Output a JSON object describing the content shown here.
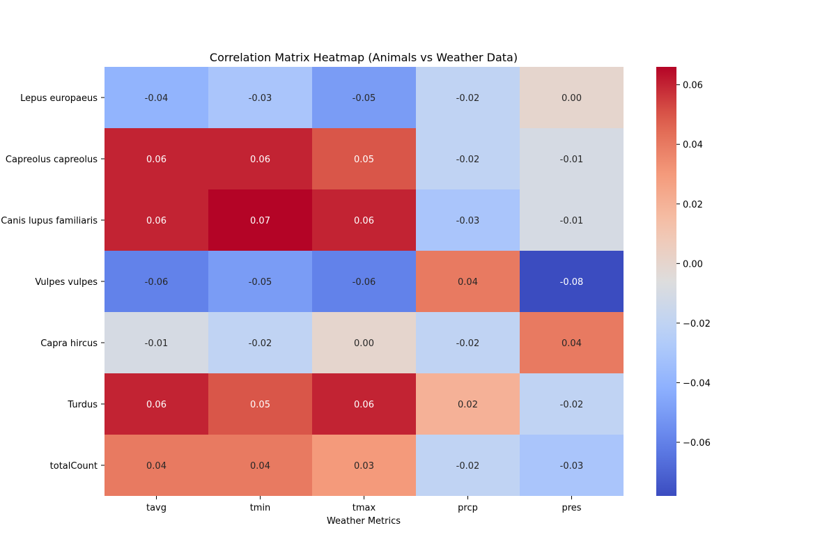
{
  "chart_data": {
    "type": "heatmap",
    "title": "Correlation Matrix Heatmap (Animals vs Weather Data)",
    "xlabel": "Weather Metrics",
    "ylabel": "",
    "x_categories": [
      "tavg",
      "tmin",
      "tmax",
      "prcp",
      "pres"
    ],
    "y_categories": [
      "Lepus europaeus",
      "Capreolus capreolus",
      "Canis lupus familiaris",
      "Vulpes vulpes",
      "Capra hircus",
      "Turdus",
      "totalCount"
    ],
    "values": [
      [
        -0.04,
        -0.03,
        -0.05,
        -0.02,
        0.0
      ],
      [
        0.06,
        0.06,
        0.05,
        -0.02,
        -0.01
      ],
      [
        0.06,
        0.07,
        0.06,
        -0.03,
        -0.01
      ],
      [
        -0.06,
        -0.05,
        -0.06,
        0.04,
        -0.08
      ],
      [
        -0.01,
        -0.02,
        0.0,
        -0.02,
        0.04
      ],
      [
        0.06,
        0.05,
        0.06,
        0.02,
        -0.02
      ],
      [
        0.04,
        0.04,
        0.03,
        -0.02,
        -0.03
      ]
    ],
    "cell_labels": [
      [
        "-0.04",
        "-0.03",
        "-0.05",
        "-0.02",
        "0.00"
      ],
      [
        "0.06",
        "0.06",
        "0.05",
        "-0.02",
        "-0.01"
      ],
      [
        "0.06",
        "0.07",
        "0.06",
        "-0.03",
        "-0.01"
      ],
      [
        "-0.06",
        "-0.05",
        "-0.06",
        "0.04",
        "-0.08"
      ],
      [
        "-0.01",
        "-0.02",
        "0.00",
        "-0.02",
        "0.04"
      ],
      [
        "0.06",
        "0.05",
        "0.06",
        "0.02",
        "-0.02"
      ],
      [
        "0.04",
        "0.04",
        "0.03",
        "-0.02",
        "-0.03"
      ]
    ],
    "colorbar": {
      "colormap": "coolwarm",
      "range": [
        -0.078,
        0.066
      ],
      "ticks": [
        0.06,
        0.04,
        0.02,
        0.0,
        -0.02,
        -0.04,
        -0.06
      ],
      "tick_labels": [
        "0.06",
        "0.04",
        "0.02",
        "0.00",
        "−0.02",
        "−0.04",
        "−0.06"
      ]
    },
    "grid": false,
    "legend": "colorbar-right"
  }
}
